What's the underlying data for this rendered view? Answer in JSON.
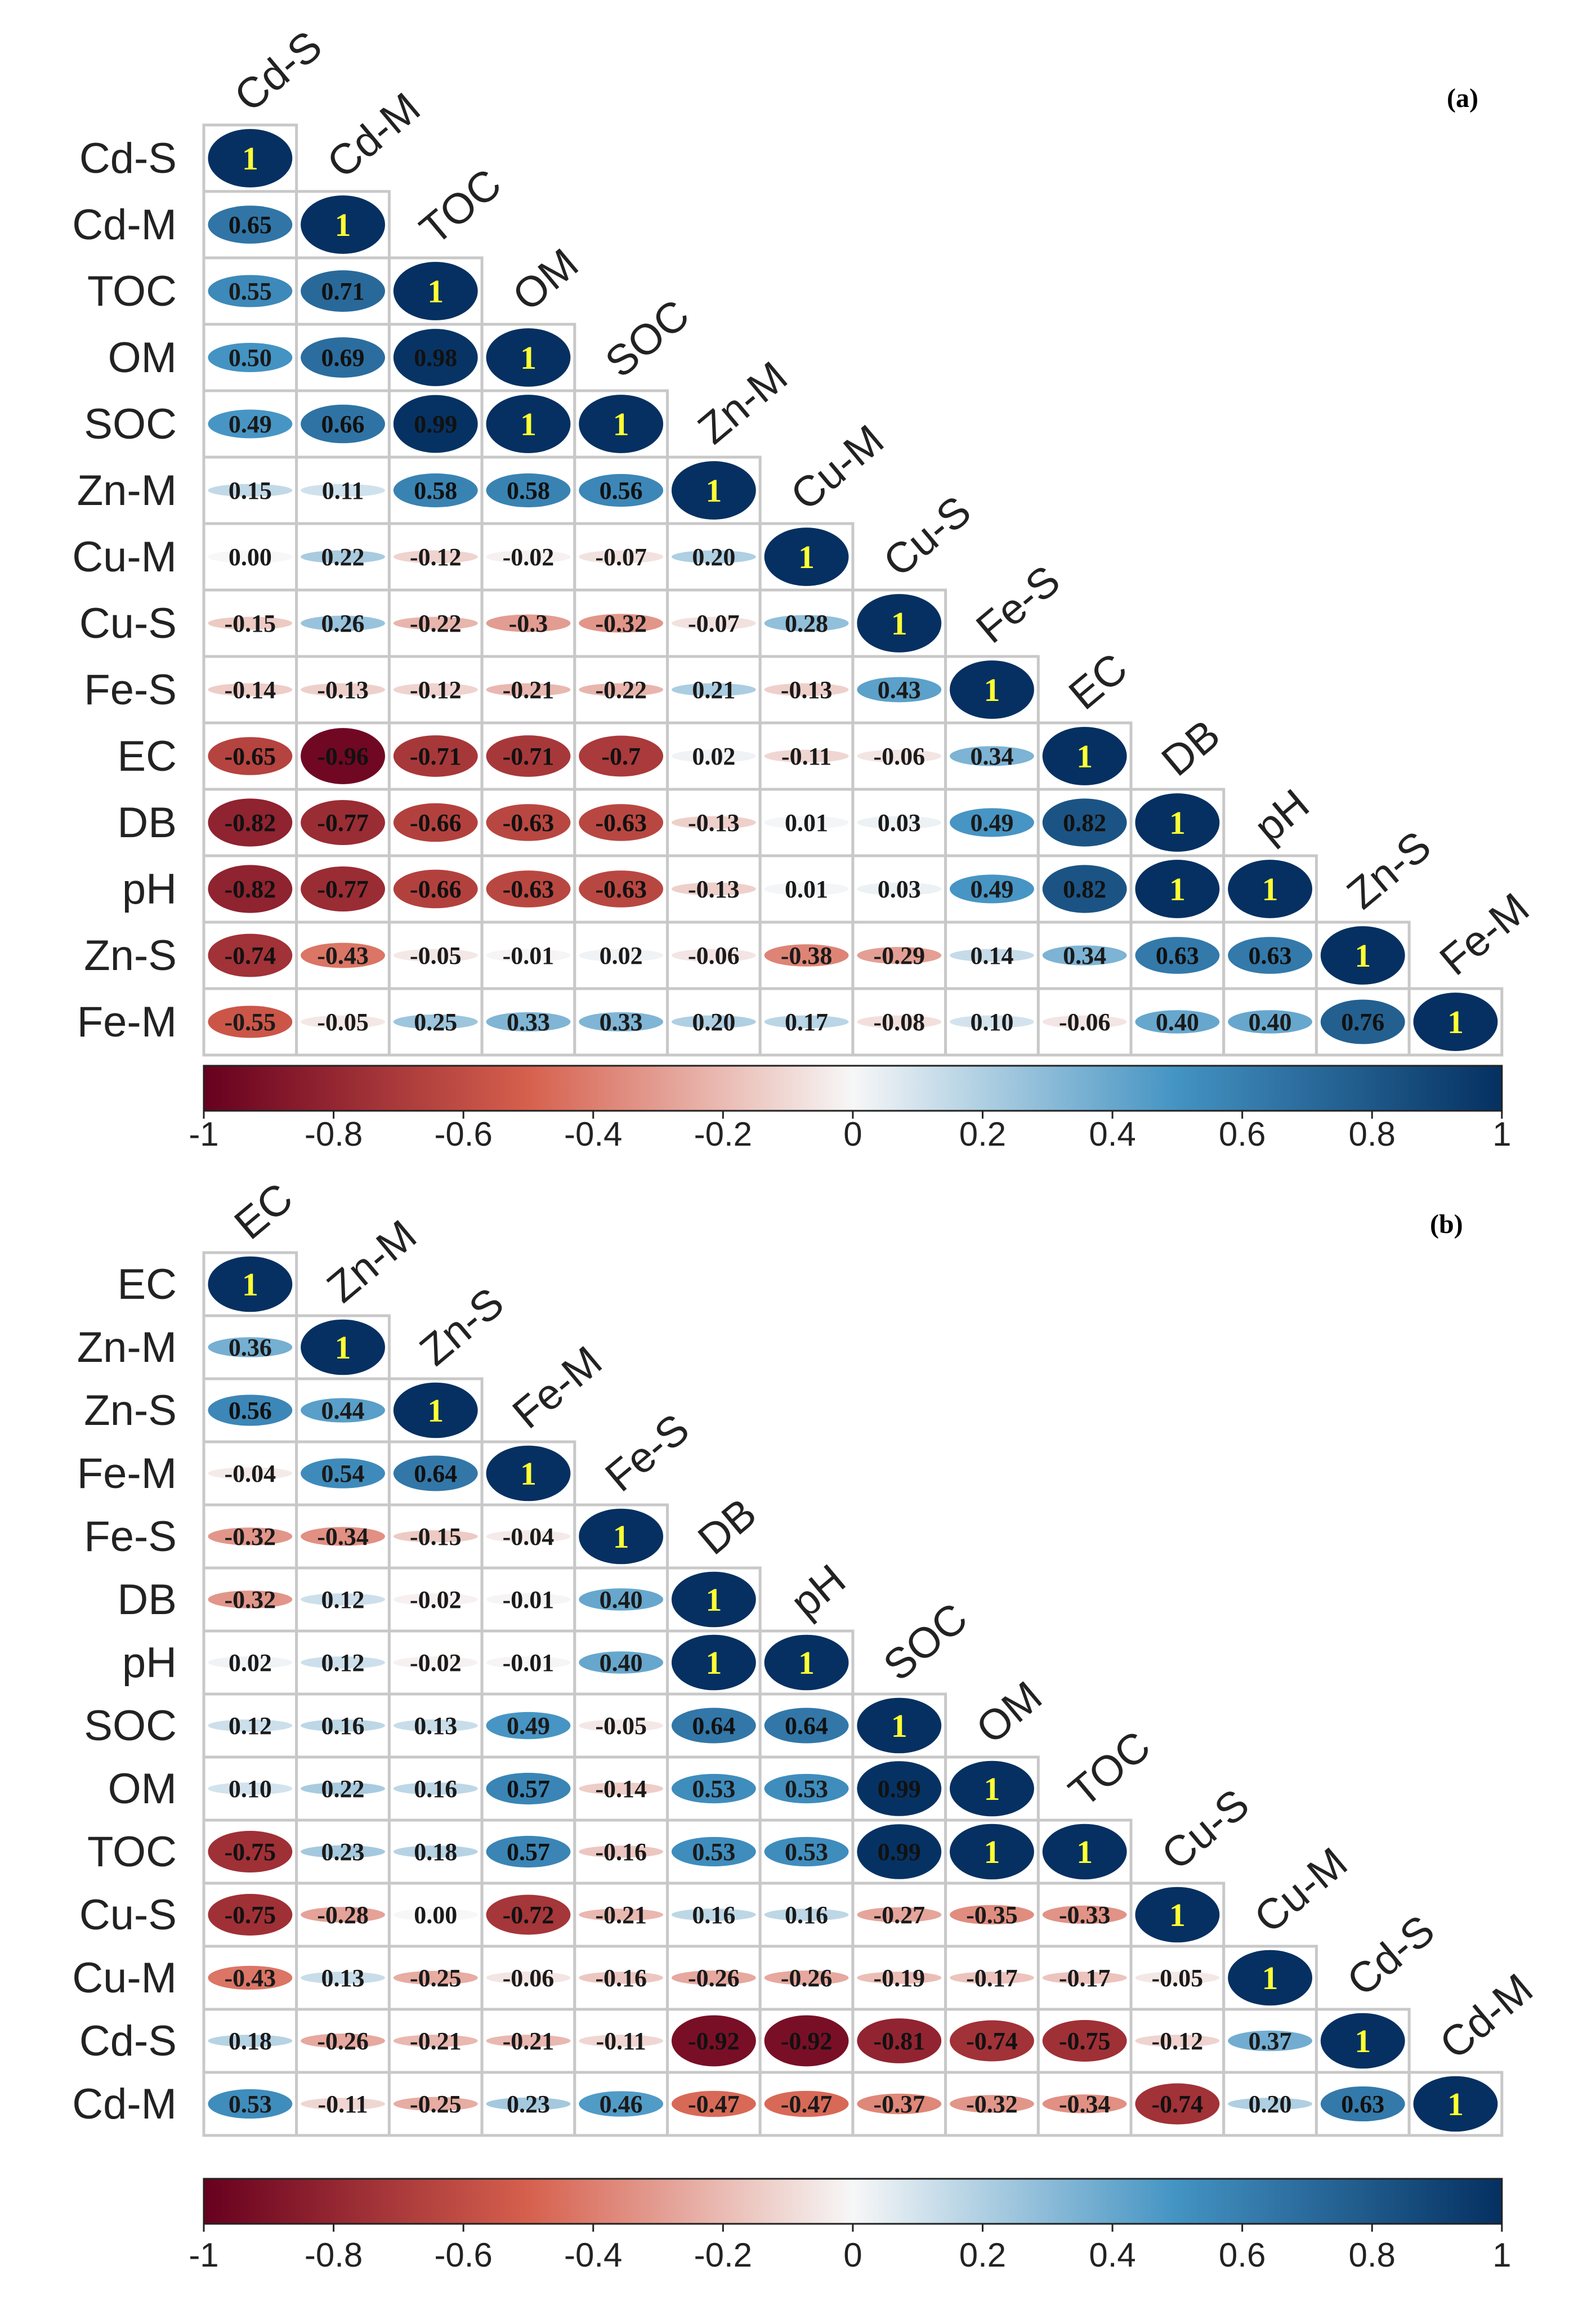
{
  "chart_data": [
    {
      "type": "heatmap",
      "subtype": "correlation-ellipse-lower-triangle",
      "panel_label": "(a)",
      "variables": [
        "Cd-S",
        "Cd-M",
        "TOC",
        "OM",
        "SOC",
        "Zn-M",
        "Cu-M",
        "Cu-S",
        "Fe-S",
        "EC",
        "DB",
        "pH",
        "Zn-S",
        "Fe-M"
      ],
      "labels": [
        [
          "1"
        ],
        [
          "0.65",
          "1"
        ],
        [
          "0.55",
          "0.71",
          "1"
        ],
        [
          "0.50",
          "0.69",
          "0.98",
          "1"
        ],
        [
          "0.49",
          "0.66",
          "0.99",
          "1",
          "1"
        ],
        [
          "0.15",
          "0.11",
          "0.58",
          "0.58",
          "0.56",
          "1"
        ],
        [
          "0.00",
          "0.22",
          "-0.12",
          "-0.02",
          "-0.07",
          "0.20",
          "1"
        ],
        [
          "-0.15",
          "0.26",
          "-0.22",
          "-0.3",
          "-0.32",
          "-0.07",
          "0.28",
          "1"
        ],
        [
          "-0.14",
          "-0.13",
          "-0.12",
          "-0.21",
          "-0.22",
          "0.21",
          "-0.13",
          "0.43",
          "1"
        ],
        [
          "-0.65",
          "-0.96",
          "-0.71",
          "-0.71",
          "-0.7",
          "0.02",
          "-0.11",
          "-0.06",
          "0.34",
          "1"
        ],
        [
          "-0.82",
          "-0.77",
          "-0.66",
          "-0.63",
          "-0.63",
          "-0.13",
          "0.01",
          "0.03",
          "0.49",
          "0.82",
          "1"
        ],
        [
          "-0.82",
          "-0.77",
          "-0.66",
          "-0.63",
          "-0.63",
          "-0.13",
          "0.01",
          "0.03",
          "0.49",
          "0.82",
          "1",
          "1"
        ],
        [
          "-0.74",
          "-0.43",
          "-0.05",
          "-0.01",
          "0.02",
          "-0.06",
          "-0.38",
          "-0.29",
          "0.14",
          "0.34",
          "0.63",
          "0.63",
          "1"
        ],
        [
          "-0.55",
          "-0.05",
          "0.25",
          "0.33",
          "0.33",
          "0.20",
          "0.17",
          "-0.08",
          "0.10",
          "-0.06",
          "0.40",
          "0.40",
          "0.76",
          "1"
        ]
      ],
      "colorbar": {
        "min": -1,
        "max": 1,
        "ticks": [
          "-1",
          "-0.8",
          "-0.6",
          "-0.4",
          "-0.2",
          "0",
          "0.2",
          "0.4",
          "0.6",
          "0.8",
          "1"
        ]
      }
    },
    {
      "type": "heatmap",
      "subtype": "correlation-ellipse-lower-triangle",
      "panel_label": "(b)",
      "variables": [
        "EC",
        "Zn-M",
        "Zn-S",
        "Fe-M",
        "Fe-S",
        "DB",
        "pH",
        "SOC",
        "OM",
        "TOC",
        "Cu-S",
        "Cu-M",
        "Cd-S",
        "Cd-M"
      ],
      "labels": [
        [
          "1"
        ],
        [
          "0.36",
          "1"
        ],
        [
          "0.56",
          "0.44",
          "1"
        ],
        [
          "-0.04",
          "0.54",
          "0.64",
          "1"
        ],
        [
          "-0.32",
          "-0.34",
          "-0.15",
          "-0.04",
          "1"
        ],
        [
          "-0.32",
          "0.12",
          "-0.02",
          "-0.01",
          "0.40",
          "1"
        ],
        [
          "0.02",
          "0.12",
          "-0.02",
          "-0.01",
          "0.40",
          "1",
          "1"
        ],
        [
          "0.12",
          "0.16",
          "0.13",
          "0.49",
          "-0.05",
          "0.64",
          "0.64",
          "1"
        ],
        [
          "0.10",
          "0.22",
          "0.16",
          "0.57",
          "-0.14",
          "0.53",
          "0.53",
          "0.99",
          "1"
        ],
        [
          "-0.75",
          "0.23",
          "0.18",
          "0.57",
          "-0.16",
          "0.53",
          "0.53",
          "0.99",
          "1",
          "1"
        ],
        [
          "-0.75",
          "-0.28",
          "0.00",
          "-0.72",
          "-0.21",
          "0.16",
          "0.16",
          "-0.27",
          "-0.35",
          "-0.33",
          "1"
        ],
        [
          "-0.43",
          "0.13",
          "-0.25",
          "-0.06",
          "-0.16",
          "-0.26",
          "-0.26",
          "-0.19",
          "-0.17",
          "-0.17",
          "-0.05",
          "1"
        ],
        [
          "0.18",
          "-0.26",
          "-0.21",
          "-0.21",
          "-0.11",
          "-0.92",
          "-0.92",
          "-0.81",
          "-0.74",
          "-0.75",
          "-0.12",
          "0.37",
          "1"
        ],
        [
          "0.53",
          "-0.11",
          "-0.25",
          "0.23",
          "0.46",
          "-0.47",
          "-0.47",
          "-0.37",
          "-0.32",
          "-0.34",
          "-0.74",
          "0.20",
          "0.63",
          "1"
        ]
      ],
      "colorbar": {
        "min": -1,
        "max": 1,
        "ticks": [
          "-1",
          "-0.8",
          "-0.6",
          "-0.4",
          "-0.2",
          "0",
          "0.2",
          "0.4",
          "0.6",
          "0.8",
          "1"
        ]
      }
    }
  ],
  "colors": {
    "neg_strong": "#67001f",
    "neg_mid": "#d6604d",
    "neutral": "#f7f7f7",
    "pos_mid": "#4393c3",
    "pos_strong": "#053061",
    "unit_text": "#ffff33",
    "grid": "#c8c8c8"
  }
}
